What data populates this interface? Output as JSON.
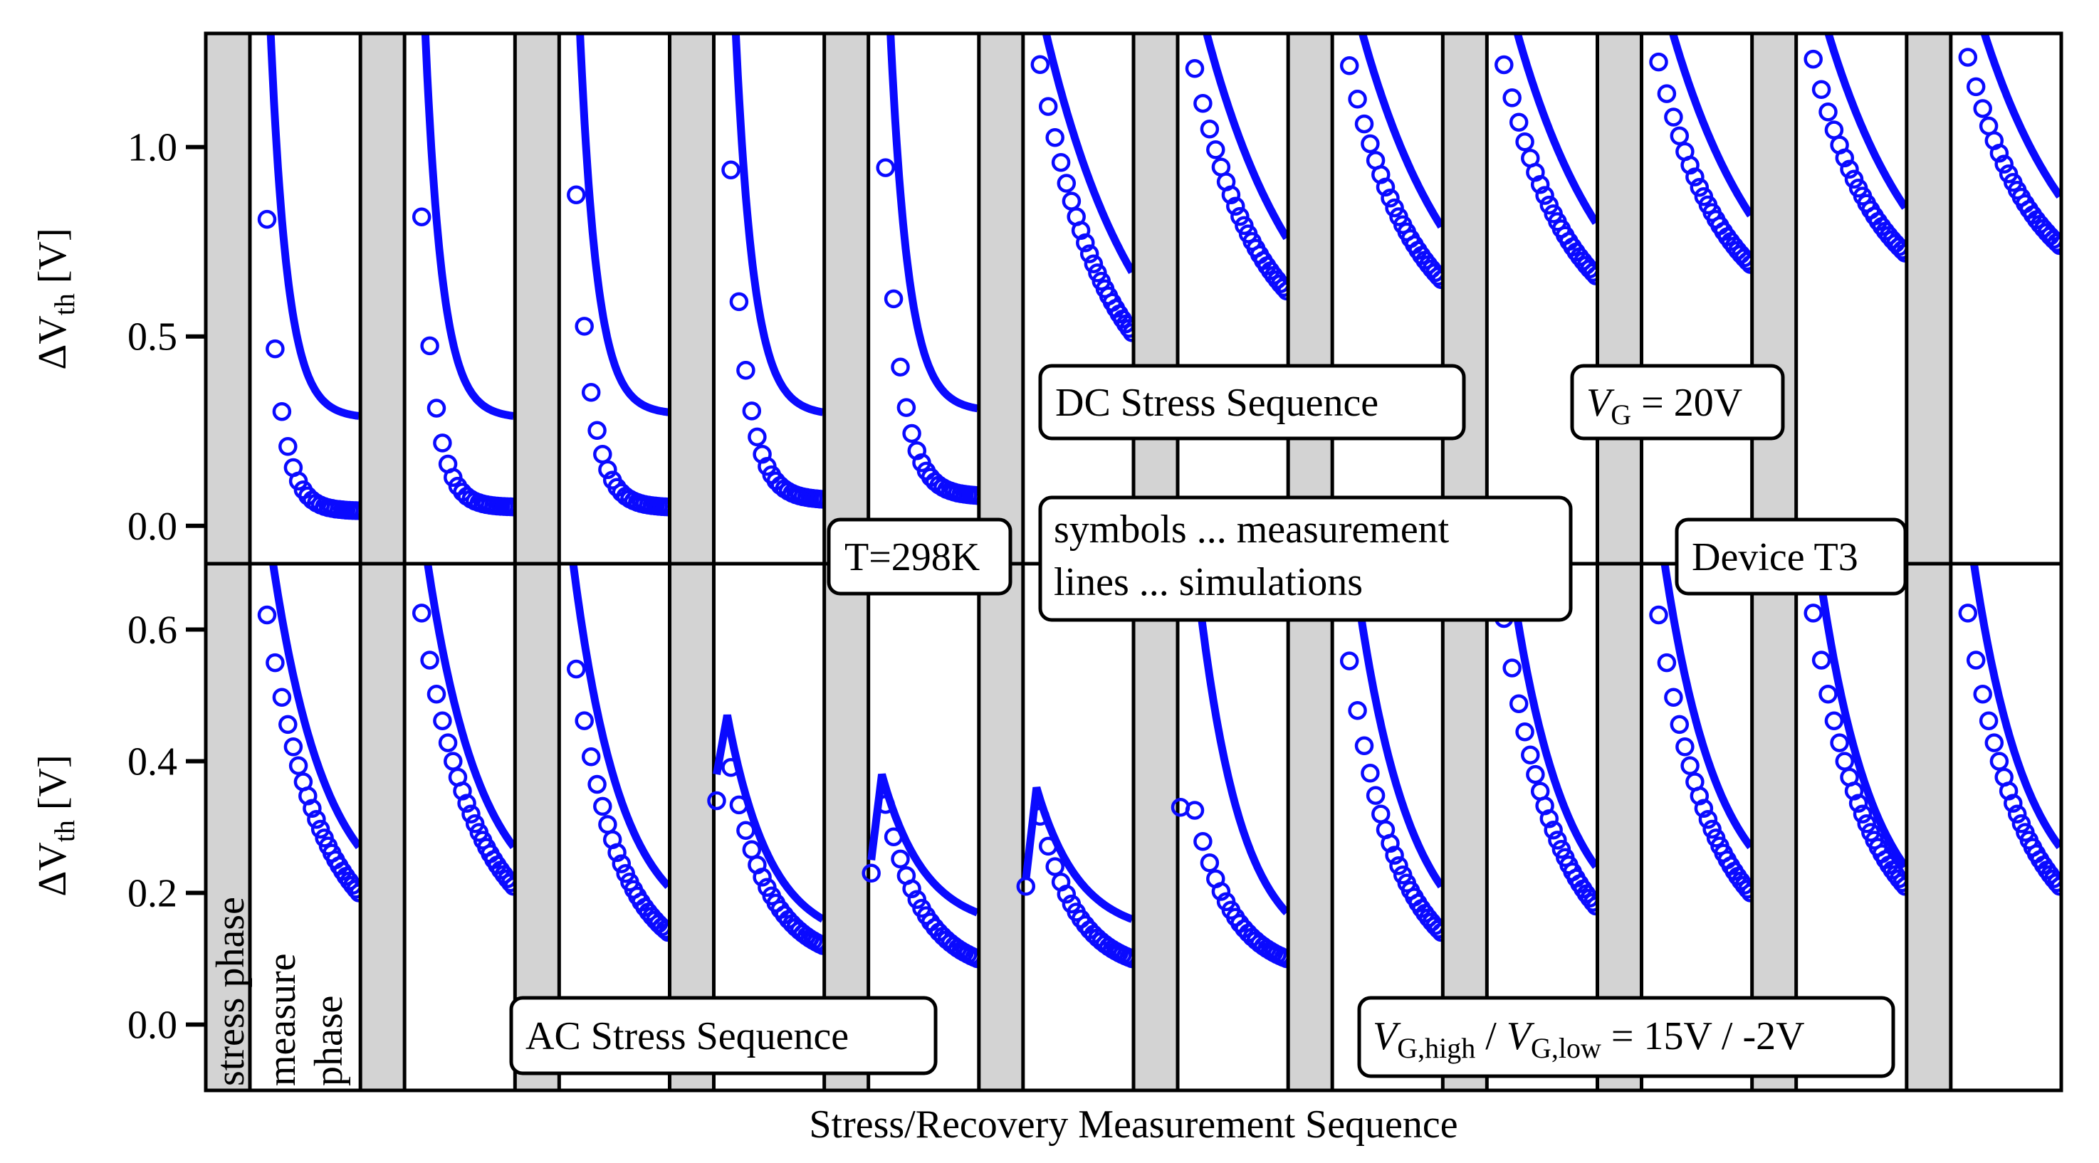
{
  "chart_data": {
    "type": "line",
    "xlabel": "Stress/Recovery Measurement Sequence",
    "colors": {
      "series": "#0a0aff",
      "stress_band": "#d3d3d3",
      "axis": "#000000"
    },
    "legend": {
      "symbols": "symbols ... measurement",
      "lines": "lines ... simulations",
      "placement": "center"
    },
    "phase_labels": {
      "stress": "stress phase",
      "measure_line1": "measure",
      "measure_line2": "phase"
    },
    "panels": [
      {
        "name": "DC",
        "ylabel_main": "ΔV",
        "ylabel_sub": "th",
        "ylabel_unit": " [V]",
        "ylim": [
          -0.1,
          1.3
        ],
        "yticks": [
          0.0,
          0.5,
          1.0
        ],
        "ytick_labels": [
          "0.0",
          "0.5",
          "1.0"
        ],
        "annotations": {
          "sequence": "DC Stress Sequence",
          "vg_main": "V",
          "vg_sub": "G",
          "vg_value": " = 20V"
        },
        "cycles": [
          {
            "sim_start": 3.2,
            "sim_end": 0.29,
            "sim_tau": 0.16,
            "meas_start": 2.2,
            "meas_end": 0.04,
            "meas_tau": 0.13
          },
          {
            "sim_start": 3.2,
            "sim_end": 0.29,
            "sim_tau": 0.16,
            "meas_start": 2.2,
            "meas_end": 0.05,
            "meas_tau": 0.13
          },
          {
            "sim_start": 3.2,
            "sim_end": 0.3,
            "sim_tau": 0.16,
            "meas_start": 2.2,
            "meas_end": 0.05,
            "meas_tau": 0.14
          },
          {
            "sim_start": 3.2,
            "sim_end": 0.3,
            "sim_tau": 0.17,
            "meas_start": 2.2,
            "meas_end": 0.07,
            "meas_tau": 0.15
          },
          {
            "sim_start": 3.2,
            "sim_end": 0.31,
            "sim_tau": 0.17,
            "meas_start": 2.2,
            "meas_end": 0.08,
            "meas_tau": 0.15
          },
          {
            "sim_start": 1.55,
            "sim_end": 0.67,
            "sim_tau": 0.9,
            "meas_start": 1.45,
            "meas_end": 0.51,
            "meas_tau": 0.6
          },
          {
            "sim_start": 1.6,
            "sim_end": 0.76,
            "sim_tau": 0.9,
            "meas_start": 1.4,
            "meas_end": 0.62,
            "meas_tau": 0.6
          },
          {
            "sim_start": 1.6,
            "sim_end": 0.79,
            "sim_tau": 0.9,
            "meas_start": 1.4,
            "meas_end": 0.65,
            "meas_tau": 0.6
          },
          {
            "sim_start": 1.6,
            "sim_end": 0.8,
            "sim_tau": 0.9,
            "meas_start": 1.4,
            "meas_end": 0.66,
            "meas_tau": 0.6
          },
          {
            "sim_start": 1.6,
            "sim_end": 0.82,
            "sim_tau": 0.9,
            "meas_start": 1.4,
            "meas_end": 0.69,
            "meas_tau": 0.6
          },
          {
            "sim_start": 1.6,
            "sim_end": 0.84,
            "sim_tau": 0.9,
            "meas_start": 1.4,
            "meas_end": 0.72,
            "meas_tau": 0.6
          },
          {
            "sim_start": 1.6,
            "sim_end": 0.87,
            "sim_tau": 0.9,
            "meas_start": 1.4,
            "meas_end": 0.74,
            "meas_tau": 0.6
          }
        ]
      },
      {
        "name": "AC",
        "ylabel_main": "ΔV",
        "ylabel_sub": "th",
        "ylabel_unit": " [V]",
        "ylim": [
          -0.1,
          0.7
        ],
        "yticks": [
          0.0,
          0.2,
          0.4,
          0.6
        ],
        "ytick_labels": [
          "0.0",
          "0.2",
          "0.4",
          "0.6"
        ],
        "annotations": {
          "sequence": "AC Stress Sequence",
          "vg_main1": "V",
          "vg_sub1": "G,high",
          "vg_sep": " / ",
          "vg_main2": "V",
          "vg_sub2": "G,low",
          "vg_value": " = 15V / -2V"
        },
        "cycles": [
          {
            "sim_start": 0.95,
            "sim_end": 0.27,
            "sim_tau": 0.5,
            "meas_start": 0.78,
            "meas_end": 0.2,
            "meas_tau": 0.5
          },
          {
            "sim_start": 0.95,
            "sim_end": 0.27,
            "sim_tau": 0.5,
            "meas_start": 0.78,
            "meas_end": 0.21,
            "meas_tau": 0.5
          },
          {
            "sim_start": 0.85,
            "sim_end": 0.21,
            "sim_tau": 0.45,
            "meas_start": 0.72,
            "meas_end": 0.14,
            "meas_tau": 0.4
          },
          {
            "sim_start": 0.38,
            "sim_peak": 0.47,
            "sim_end": 0.16,
            "sim_tau": 0.45,
            "meas_start": 0.34,
            "meas_peak": 0.42,
            "meas_end": 0.12,
            "meas_tau": 0.4
          },
          {
            "sim_start": 0.25,
            "sim_peak": 0.38,
            "sim_end": 0.17,
            "sim_tau": 0.45,
            "meas_start": 0.23,
            "meas_peak": 0.36,
            "meas_end": 0.1,
            "meas_tau": 0.4
          },
          {
            "sim_start": 0.22,
            "sim_peak": 0.36,
            "sim_end": 0.16,
            "sim_tau": 0.45,
            "meas_start": 0.21,
            "meas_peak": 0.34,
            "meas_end": 0.1,
            "meas_tau": 0.4
          },
          {
            "sim_start": 0.95,
            "sim_end": 0.17,
            "sim_tau": 0.4,
            "meas_start": 0.33,
            "meas_peak": 0.35,
            "meas_end": 0.1,
            "meas_tau": 0.4
          },
          {
            "sim_start": 0.95,
            "sim_end": 0.21,
            "sim_tau": 0.5,
            "meas_start": 0.72,
            "meas_end": 0.14,
            "meas_tau": 0.45
          },
          {
            "sim_start": 0.95,
            "sim_end": 0.24,
            "sim_tau": 0.5,
            "meas_start": 0.78,
            "meas_end": 0.18,
            "meas_tau": 0.5
          },
          {
            "sim_start": 0.95,
            "sim_end": 0.27,
            "sim_tau": 0.5,
            "meas_start": 0.78,
            "meas_end": 0.2,
            "meas_tau": 0.5
          },
          {
            "sim_start": 0.95,
            "sim_end": 0.24,
            "sim_tau": 0.5,
            "meas_start": 0.78,
            "meas_end": 0.21,
            "meas_tau": 0.5
          },
          {
            "sim_start": 0.95,
            "sim_end": 0.27,
            "sim_tau": 0.5,
            "meas_start": 0.78,
            "meas_end": 0.21,
            "meas_tau": 0.5
          }
        ]
      }
    ],
    "info": {
      "temperature": "T=298K",
      "device": "Device T3"
    }
  }
}
